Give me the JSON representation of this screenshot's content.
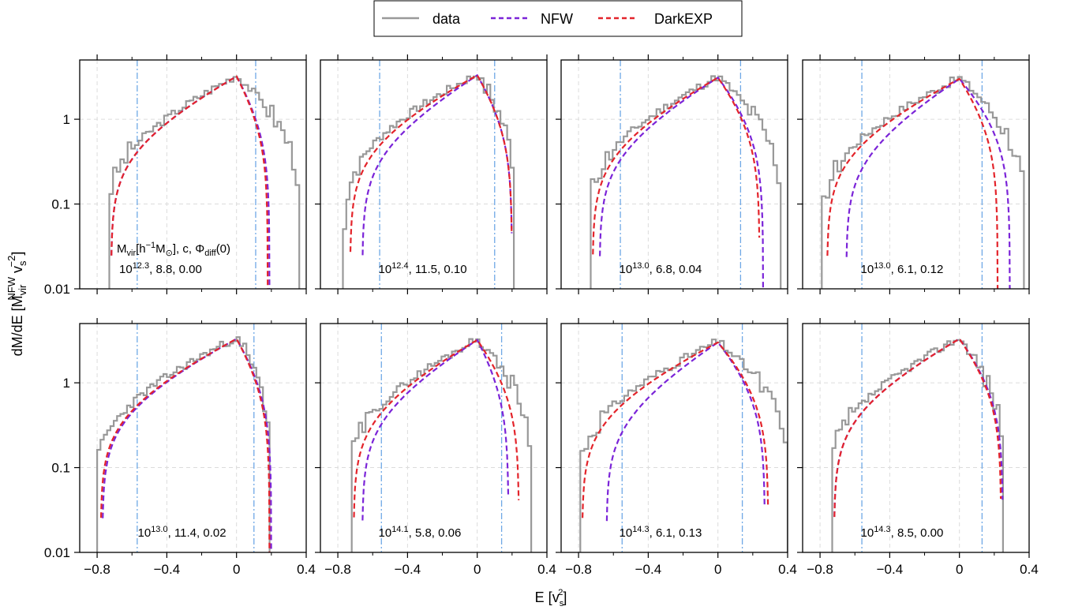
{
  "chart_data": {
    "type": "line",
    "layout": "2x4 grid, shared axes",
    "xlabel_main": "E",
    "xlabel_unit_base": "v",
    "xlabel_unit_sub": "s",
    "xlabel_unit_sup": "2",
    "ylabel_main": "dM/dE",
    "ylabel_unit_base1": "M",
    "ylabel_unit_sub1": "vir",
    "ylabel_unit_sup1": "NFW",
    "ylabel_unit_base2": "v",
    "ylabel_unit_sub2": "s",
    "ylabel_unit_sup2": "−2",
    "xlim": [
      -0.9,
      0.4
    ],
    "ylim": [
      0.01,
      5
    ],
    "yscale": "log",
    "xticks": [
      "−0.8",
      "−0.4",
      "0",
      "0.4"
    ],
    "xtick_values": [
      -0.8,
      -0.4,
      0,
      0.4
    ],
    "yticks": [
      "0.01",
      "0.1",
      "1"
    ],
    "ytick_values": [
      0.01,
      0.1,
      1
    ],
    "grid": true,
    "legend": {
      "placement": "top-center",
      "entries": [
        {
          "label": "data",
          "color": "#999999",
          "style": "solid"
        },
        {
          "label": "NFW",
          "color": "#7b24d8",
          "style": "dashed"
        },
        {
          "label": "DarkEXP",
          "color": "#e3242b",
          "style": "dashed"
        }
      ]
    },
    "header_annotation": {
      "m": "M",
      "m_sub": "vir",
      "h": "[h",
      "h_sup": "−1",
      "msun": "M",
      "msun_sub": "⊙",
      "rest": "], c, Φ",
      "phi_sub": "diff",
      "phi_arg": "(0)"
    },
    "panels": [
      {
        "mass_base": "10",
        "mass_exp": "12.3",
        "params": ", 8.8, 0.00",
        "vlines": [
          -0.57,
          0.11
        ],
        "nfw": {
          "lo": -0.72,
          "hi": 0.19,
          "peak": 3.2,
          "shape": 0.15
        },
        "dexp": {
          "lo": -0.72,
          "hi": 0.18,
          "peak": 3.2,
          "shape": 0.15
        },
        "data": {
          "lo": -0.73,
          "hi": 0.36,
          "seed": 3
        }
      },
      {
        "mass_base": "10",
        "mass_exp": "12.4",
        "params": ", 11.5, 0.10",
        "vlines": [
          -0.56,
          0.1
        ],
        "nfw": {
          "lo": -0.66,
          "hi": 0.2,
          "peak": 3.3,
          "shape": 0.1
        },
        "dexp": {
          "lo": -0.73,
          "hi": 0.2,
          "peak": 3.3,
          "shape": 0.22
        },
        "data": {
          "lo": -0.79,
          "hi": 0.21,
          "seed": 7
        }
      },
      {
        "mass_base": "10",
        "mass_exp": "13.0",
        "params": ", 6.8, 0.04",
        "vlines": [
          -0.56,
          0.13
        ],
        "nfw": {
          "lo": -0.68,
          "hi": 0.26,
          "peak": 3.1,
          "shape": 0.1
        },
        "dexp": {
          "lo": -0.72,
          "hi": 0.24,
          "peak": 3.1,
          "shape": 0.18
        },
        "data": {
          "lo": -0.73,
          "hi": 0.36,
          "seed": 11
        }
      },
      {
        "mass_base": "10",
        "mass_exp": "13.0",
        "params": ", 6.1, 0.12",
        "vlines": [
          -0.56,
          0.13
        ],
        "nfw": {
          "lo": -0.65,
          "hi": 0.29,
          "peak": 3.0,
          "shape": 0.08
        },
        "dexp": {
          "lo": -0.76,
          "hi": 0.22,
          "peak": 3.0,
          "shape": 0.2
        },
        "data": {
          "lo": -0.79,
          "hi": 0.37,
          "seed": 17
        }
      },
      {
        "mass_base": "10",
        "mass_exp": "13.0",
        "params": ", 11.4, 0.02",
        "vlines": [
          -0.57,
          0.1
        ],
        "nfw": {
          "lo": -0.77,
          "hi": 0.2,
          "peak": 3.3,
          "shape": 0.14
        },
        "dexp": {
          "lo": -0.78,
          "hi": 0.19,
          "peak": 3.3,
          "shape": 0.16
        },
        "data": {
          "lo": -0.8,
          "hi": 0.19,
          "seed": 23
        }
      },
      {
        "mass_base": "10",
        "mass_exp": "14.1",
        "params": ", 5.8, 0.06",
        "vlines": [
          -0.55,
          0.14
        ],
        "nfw": {
          "lo": -0.66,
          "hi": 0.18,
          "peak": 3.2,
          "shape": 0.1
        },
        "dexp": {
          "lo": -0.71,
          "hi": 0.24,
          "peak": 3.2,
          "shape": 0.16
        },
        "data": {
          "lo": -0.72,
          "hi": 0.31,
          "seed": 29
        }
      },
      {
        "mass_base": "10",
        "mass_exp": "14.3",
        "params": ", 6.1, 0.13",
        "vlines": [
          -0.55,
          0.14
        ],
        "nfw": {
          "lo": -0.64,
          "hi": 0.27,
          "peak": 3.0,
          "shape": 0.08
        },
        "dexp": {
          "lo": -0.78,
          "hi": 0.29,
          "peak": 3.0,
          "shape": 0.2
        },
        "data": {
          "lo": -0.79,
          "hi": 0.4,
          "seed": 31
        }
      },
      {
        "mass_base": "10",
        "mass_exp": "14.3",
        "params": ", 8.5, 0.00",
        "vlines": [
          -0.56,
          0.13
        ],
        "nfw": {
          "lo": -0.72,
          "hi": 0.25,
          "peak": 3.3,
          "shape": 0.14
        },
        "dexp": {
          "lo": -0.72,
          "hi": 0.24,
          "peak": 3.3,
          "shape": 0.14
        },
        "data": {
          "lo": -0.73,
          "hi": 0.25,
          "seed": 37
        }
      }
    ]
  }
}
